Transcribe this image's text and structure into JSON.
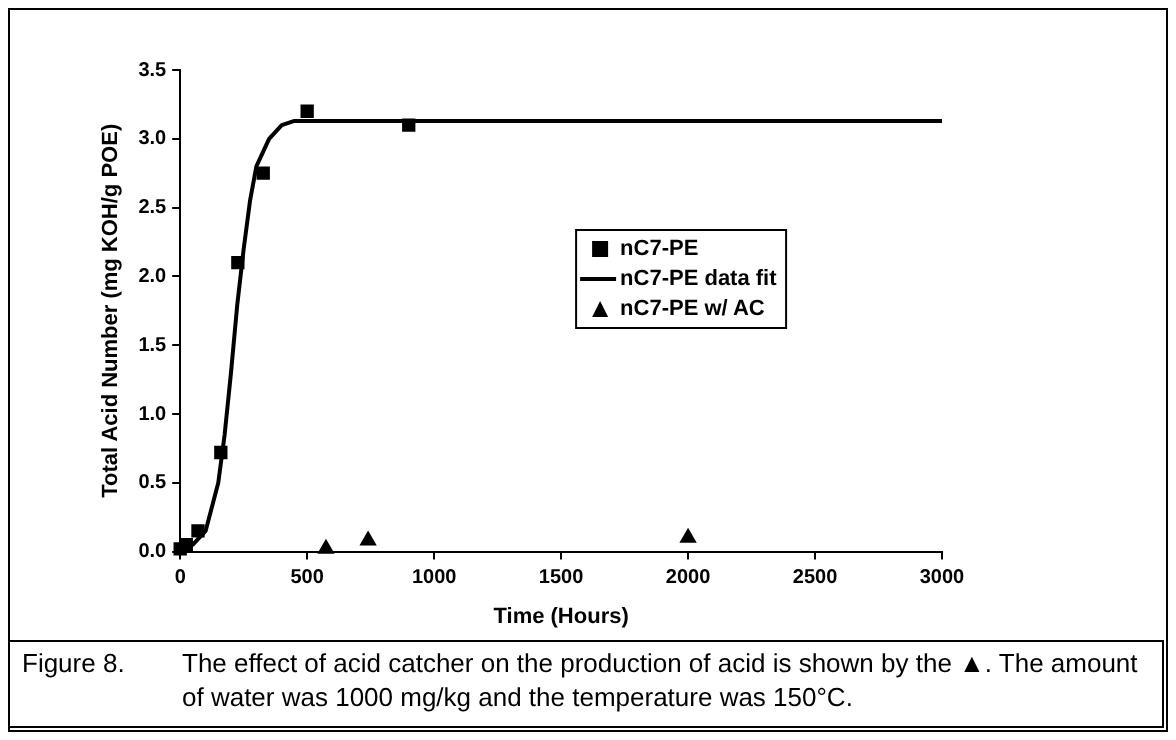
{
  "chart_data": {
    "type": "scatter",
    "xlabel": "Time (Hours)",
    "ylabel": "Total Acid Number (mg KOH/g POE)",
    "xlim": [
      0,
      3000
    ],
    "xticks": [
      0,
      500,
      1000,
      1500,
      2000,
      2500,
      3000
    ],
    "ylim": [
      0,
      3.5
    ],
    "yticks": [
      {
        "value": 0,
        "label": "0.0"
      },
      {
        "value": 0.5,
        "label": "0.5"
      },
      {
        "value": 1,
        "label": "1.0"
      },
      {
        "value": 1.5,
        "label": "1.5"
      },
      {
        "value": 2,
        "label": "2.0"
      },
      {
        "value": 2.5,
        "label": "2.5"
      },
      {
        "value": 3,
        "label": "3.0"
      },
      {
        "value": 3.5,
        "label": "3.5"
      }
    ],
    "grid": false,
    "legend": "top",
    "series": [
      {
        "name": "nC7-PE",
        "type": "scatter",
        "marker": "square",
        "color": "#000000",
        "x": [
          0,
          24,
          70,
          160,
          227,
          327,
          500,
          900
        ],
        "values": [
          0.02,
          0.05,
          0.15,
          0.72,
          2.1,
          2.75,
          3.2,
          3.1
        ]
      },
      {
        "name": "nC7-PE data fit",
        "type": "line",
        "marker": "none",
        "line_style": "solid",
        "color": "#000000",
        "x": [
          0,
          50,
          100,
          150,
          175,
          200,
          225,
          250,
          275,
          300,
          350,
          400,
          450,
          500,
          1000,
          3000
        ],
        "values": [
          0.02,
          0.05,
          0.15,
          0.5,
          0.85,
          1.3,
          1.8,
          2.2,
          2.55,
          2.8,
          3.0,
          3.1,
          3.13,
          3.13,
          3.13,
          3.13
        ]
      },
      {
        "name": "nC7-PE w/ AC",
        "type": "scatter",
        "marker": "triangle",
        "color": "#000000",
        "x": [
          574,
          740,
          2000
        ],
        "values": [
          0.02,
          0.08,
          0.1
        ]
      }
    ],
    "annotations": [
      "Figure 8.",
      "The effect of acid catcher on the production of acid is shown by the ▲.  The amount of water was 1000 mg/kg and the temperature was 150°C."
    ]
  }
}
